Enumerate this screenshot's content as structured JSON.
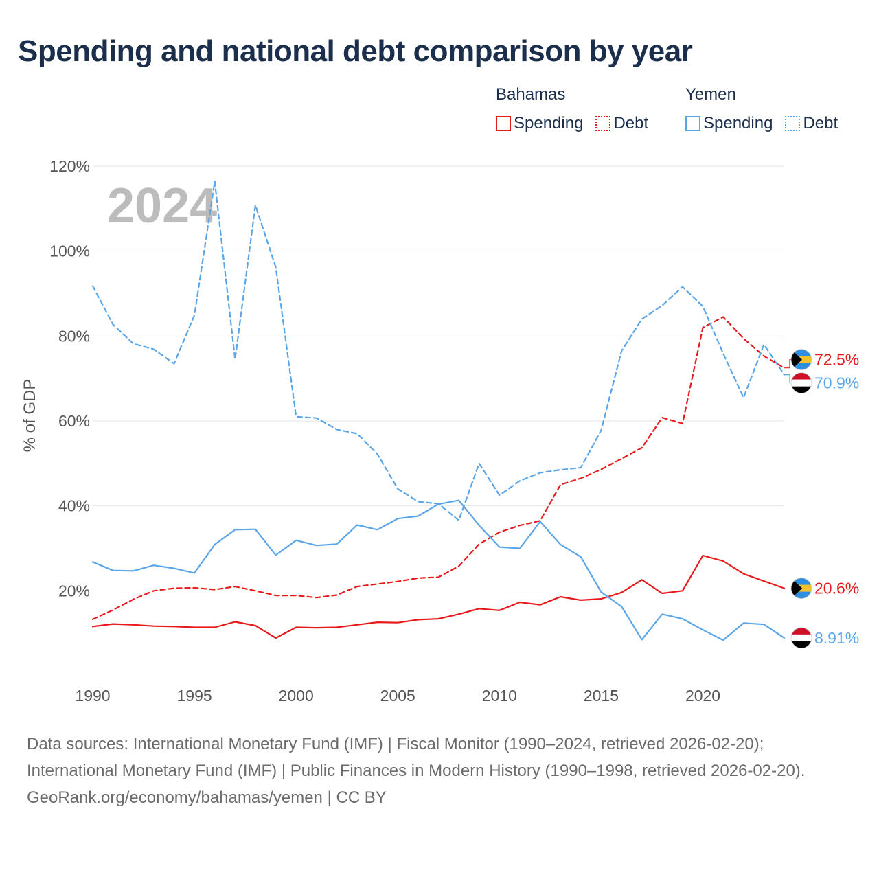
{
  "title": "Spending and national debt comparison by year",
  "legend": {
    "groups": [
      {
        "name": "Bahamas",
        "color": "#e8191a",
        "items": [
          {
            "label": "Spending",
            "style": "solid"
          },
          {
            "label": "Debt",
            "style": "dotted"
          }
        ]
      },
      {
        "name": "Yemen",
        "color": "#5aa6e8",
        "items": [
          {
            "label": "Spending",
            "style": "solid"
          },
          {
            "label": "Debt",
            "style": "dotted"
          }
        ]
      }
    ]
  },
  "year_watermark": "2024",
  "footer": {
    "sources": "Data sources: International Monetary Fund (IMF) | Fiscal Monitor (1990–2024, retrieved 2026-02-20); International Monetary Fund (IMF) | Public Finances in Modern History (1990–1998, retrieved 2026-02-20).",
    "credit": "GeoRank.org/economy/bahamas/yemen | CC BY"
  },
  "chart_data": {
    "type": "line",
    "title": "Spending and national debt comparison by year",
    "xlabel": "",
    "ylabel": "% of GDP",
    "xlim": [
      1990,
      2024
    ],
    "ylim": [
      0,
      120
    ],
    "x_ticks": [
      1990,
      1995,
      2000,
      2005,
      2010,
      2015,
      2020
    ],
    "y_ticks": [
      20,
      40,
      60,
      80,
      100,
      120
    ],
    "y_tick_labels": [
      "20%",
      "40%",
      "60%",
      "80%",
      "100%",
      "120%"
    ],
    "grid": true,
    "x": [
      1990,
      1991,
      1992,
      1993,
      1994,
      1995,
      1996,
      1997,
      1998,
      1999,
      2000,
      2001,
      2002,
      2003,
      2004,
      2005,
      2006,
      2007,
      2008,
      2009,
      2010,
      2011,
      2012,
      2013,
      2014,
      2015,
      2016,
      2017,
      2018,
      2019,
      2020,
      2021,
      2022,
      2023,
      2024
    ],
    "series": [
      {
        "name": "Bahamas Spending",
        "country": "Bahamas",
        "measure": "Spending",
        "color": "#e8191a",
        "dash": "solid",
        "end_label": "20.6%",
        "label_value": 20.6,
        "values": [
          11.6,
          12.2,
          12.0,
          11.7,
          11.6,
          11.4,
          11.4,
          12.7,
          11.8,
          8.9,
          11.4,
          11.3,
          11.4,
          12.0,
          12.6,
          12.5,
          13.2,
          13.4,
          14.5,
          15.8,
          15.4,
          17.3,
          16.7,
          18.6,
          17.8,
          18.1,
          19.6,
          22.6,
          19.4,
          20.0,
          28.3,
          27.0,
          24.0,
          22.3,
          20.6
        ]
      },
      {
        "name": "Bahamas Debt",
        "country": "Bahamas",
        "measure": "Debt",
        "color": "#e8191a",
        "dash": "dashed",
        "end_label": "72.5%",
        "label_value": 72.5,
        "values": [
          13.3,
          15.5,
          18.0,
          20.0,
          20.6,
          20.7,
          20.3,
          21.0,
          20.0,
          18.9,
          18.9,
          18.4,
          19.0,
          21.0,
          21.6,
          22.2,
          23.0,
          23.2,
          25.8,
          31.0,
          33.8,
          35.4,
          36.5,
          45.0,
          46.5,
          48.6,
          51.1,
          53.7,
          60.8,
          59.4,
          82.0,
          84.5,
          79.4,
          75.3,
          72.5
        ]
      },
      {
        "name": "Yemen Spending",
        "country": "Yemen",
        "measure": "Spending",
        "color": "#5aa6e8",
        "dash": "solid",
        "end_label": "8.91%",
        "label_value": 8.91,
        "values": [
          26.8,
          24.8,
          24.7,
          26.0,
          25.3,
          24.2,
          30.9,
          34.4,
          34.5,
          28.4,
          31.9,
          30.7,
          31.0,
          35.5,
          34.4,
          37.0,
          37.6,
          40.4,
          41.3,
          35.4,
          30.3,
          30.0,
          36.3,
          30.9,
          28.0,
          19.7,
          16.3,
          8.5,
          14.5,
          13.4,
          10.8,
          8.4,
          12.4,
          12.1,
          8.91
        ]
      },
      {
        "name": "Yemen Debt",
        "country": "Yemen",
        "measure": "Debt",
        "color": "#5aa6e8",
        "dash": "dashed",
        "end_label": "70.9%",
        "label_value": 70.9,
        "values": [
          91.8,
          82.7,
          78.2,
          76.9,
          73.5,
          84.9,
          116.4,
          74.5,
          110.8,
          96.2,
          61.0,
          60.7,
          58.0,
          57.0,
          52.2,
          44.0,
          41.0,
          40.5,
          36.6,
          50.0,
          42.5,
          45.9,
          47.8,
          48.5,
          49.0,
          57.8,
          76.5,
          84.0,
          87.2,
          91.6,
          87.0,
          75.9,
          65.5,
          78.0,
          70.9
        ]
      }
    ]
  }
}
